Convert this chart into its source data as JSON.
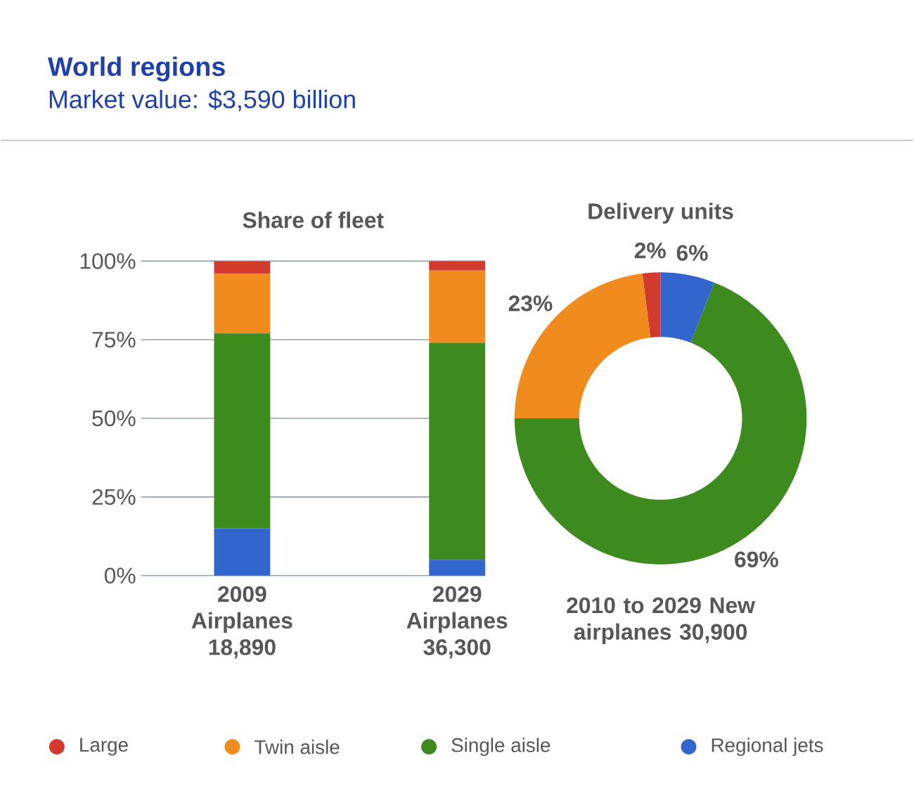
{
  "chart_data": [
    {
      "type": "other",
      "title": "World regions",
      "subtitle": "Market value: $3,590 billion"
    },
    {
      "type": "bar",
      "title": "Share of fleet",
      "stacked": true,
      "categories": [
        "2009 Airplanes 18,890",
        "2029 Airplanes 36,300"
      ],
      "series": [
        {
          "name": "Large",
          "color": "#d23a2e",
          "values": [
            4,
            3
          ]
        },
        {
          "name": "Twin aisle",
          "color": "#f08c1e",
          "values": [
            19,
            23
          ]
        },
        {
          "name": "Single aisle",
          "color": "#3d8a1e",
          "values": [
            62,
            69
          ]
        },
        {
          "name": "Regional jets",
          "color": "#3366cc",
          "values": [
            15,
            5
          ]
        }
      ],
      "ylim": [
        0,
        100
      ],
      "yticks": [
        {
          "value": 0,
          "label": "0%"
        },
        {
          "value": 25,
          "label": "25%"
        },
        {
          "value": 50,
          "label": "50%"
        },
        {
          "value": 75,
          "label": "75%"
        },
        {
          "value": 100,
          "label": "100%"
        }
      ],
      "grid": "y",
      "legend": "bottom"
    },
    {
      "type": "donut",
      "title": "Delivery units",
      "xlabel": "2010 to 2029 New airplanes 30,900",
      "categories": [
        null,
        null,
        null,
        null
      ],
      "values": [
        2,
        23,
        69,
        6
      ],
      "colors": [
        "#d23a2e",
        "#f08c1e",
        "#3d8a1e",
        "#3366cc"
      ],
      "value_labels": [
        "2%",
        "23%",
        "69%",
        "6%"
      ]
    }
  ]
}
